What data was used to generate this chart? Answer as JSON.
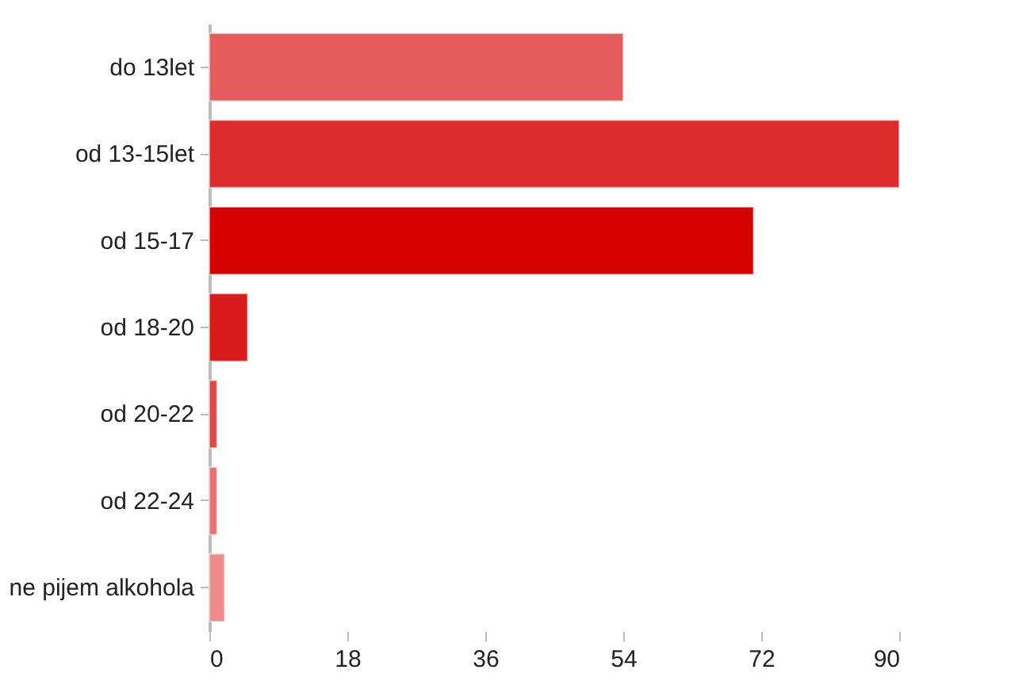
{
  "chart_data": {
    "type": "bar",
    "orientation": "horizontal",
    "categories": [
      "do 13let",
      "od 13-15let",
      "od 15-17",
      "od 18-20",
      "od 20-22",
      "od 22-24",
      "ne pijem alkohola"
    ],
    "values": [
      54,
      90,
      71,
      5,
      1,
      1,
      2
    ],
    "colors": [
      "#e65c5c",
      "#dd2c2c",
      "#d50000",
      "#d81a1a",
      "#e04848",
      "#e87070",
      "#ee8c8c"
    ],
    "xlim": [
      0,
      90
    ],
    "xticks": [
      0,
      18,
      36,
      54,
      72,
      90
    ],
    "grid": false,
    "legend": false
  }
}
